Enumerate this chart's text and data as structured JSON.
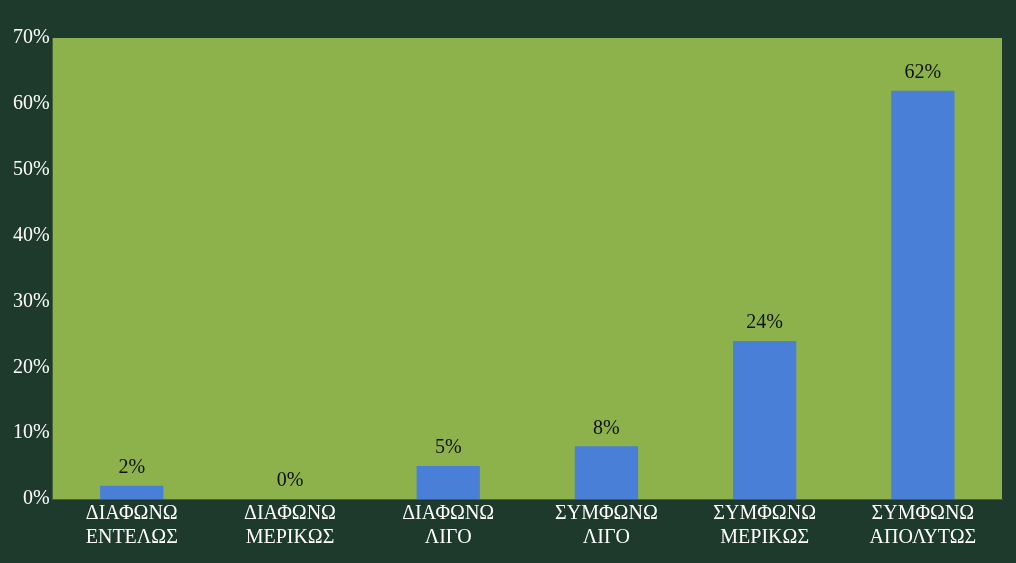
{
  "chart_data": {
    "type": "bar",
    "categories": [
      "ΔΙΑΦΩΝΩ ΕΝΤΕΛΩΣ",
      "ΔΙΑΦΩΝΩ ΜΕΡΙΚΩΣ",
      "ΔΙΑΦΩΝΩ ΛΙΓΟ",
      "ΣΥΜΦΩΝΩ ΛΙΓΟ",
      "ΣΥΜΦΩΝΩ ΜΕΡΙΚΩΣ",
      "ΣΥΜΦΩΝΩ ΑΠΟΛΥΤΩΣ"
    ],
    "values": [
      2,
      0,
      5,
      8,
      24,
      62
    ],
    "value_labels": [
      "2%",
      "0%",
      "5%",
      "8%",
      "24%",
      "62%"
    ],
    "color": "#4a7fd8",
    "ylim": [
      0,
      70
    ],
    "yticks": [
      {
        "value": 0,
        "label": "0%"
      },
      {
        "value": 10,
        "label": "10%"
      },
      {
        "value": 20,
        "label": "20%"
      },
      {
        "value": 30,
        "label": "30%"
      },
      {
        "value": 40,
        "label": "40%"
      },
      {
        "value": 50,
        "label": "50%"
      },
      {
        "value": 60,
        "label": "60%"
      },
      {
        "value": 70,
        "label": "70%"
      }
    ],
    "grid": false,
    "legend": false
  }
}
